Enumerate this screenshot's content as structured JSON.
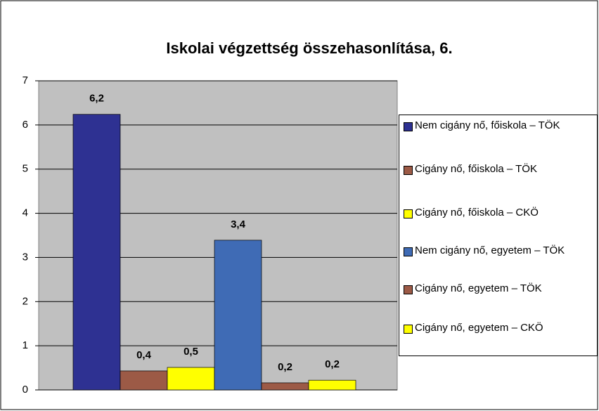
{
  "chart_data": {
    "type": "bar",
    "title": "Iskolai végzettség összehasonlítása, 6.",
    "series": [
      {
        "name": "Nem cigány nő, főiskola – TÖK",
        "color": "#2e3192",
        "values": [
          6.24
        ],
        "value_labels": [
          "6,2"
        ]
      },
      {
        "name": "Cigány nő, főiskola – TÖK",
        "color": "#9c5a46",
        "values": [
          0.43
        ],
        "value_labels": [
          "0,4"
        ]
      },
      {
        "name": "Cigány nő, főiskola – CKÖ",
        "color": "#ffff00",
        "values": [
          0.51
        ],
        "value_labels": [
          "0,5"
        ]
      },
      {
        "name": "Nem cigány nő, egyetem – TÖK",
        "color": "#3f6bb5",
        "values": [
          3.39
        ],
        "value_labels": [
          "3,4"
        ]
      },
      {
        "name": "Cigány nő, egyetem – TÖK",
        "color": "#9c5a46",
        "values": [
          0.16
        ],
        "value_labels": [
          "0,2"
        ]
      },
      {
        "name": "Cigány nő, egyetem – CKÖ",
        "color": "#ffff00",
        "values": [
          0.22
        ],
        "value_labels": [
          "0,2"
        ]
      }
    ],
    "ylim": [
      0,
      7
    ],
    "yticks": [
      0,
      1,
      2,
      3,
      4,
      5,
      6,
      7
    ],
    "grid": true,
    "legend": "right"
  }
}
